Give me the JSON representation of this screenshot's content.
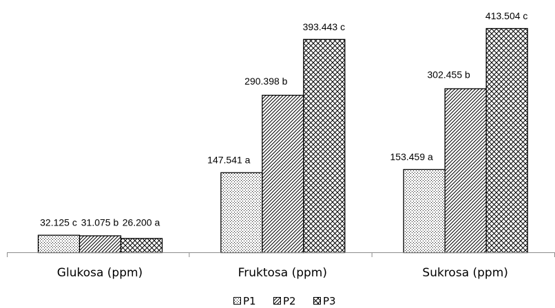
{
  "chart_data": {
    "type": "bar",
    "categories": [
      "Glukosa (ppm)",
      "Fruktosa (ppm)",
      "Sukrosa (ppm)"
    ],
    "series": [
      {
        "name": "P1",
        "values": [
          32.125,
          147.541,
          153.459
        ],
        "labels": [
          "32.125 c",
          "147.541 a",
          "153.459 a"
        ],
        "pattern": "dots"
      },
      {
        "name": "P2",
        "values": [
          31.075,
          290.398,
          302.455
        ],
        "labels": [
          "31.075 b",
          "290.398 b",
          "302.455 b"
        ],
        "pattern": "diagonal"
      },
      {
        "name": "P3",
        "values": [
          26.2,
          393.443,
          413.504
        ],
        "labels": [
          "26.200 a",
          "393.443 c",
          "413.504 c"
        ],
        "pattern": "crosshatch"
      }
    ],
    "title": "",
    "xlabel": "",
    "ylabel": "",
    "ylim": [
      0,
      430
    ],
    "grid": false,
    "legend_position": "bottom",
    "colors": {
      "bar_stroke": "#000000",
      "background": "#ffffff"
    }
  }
}
